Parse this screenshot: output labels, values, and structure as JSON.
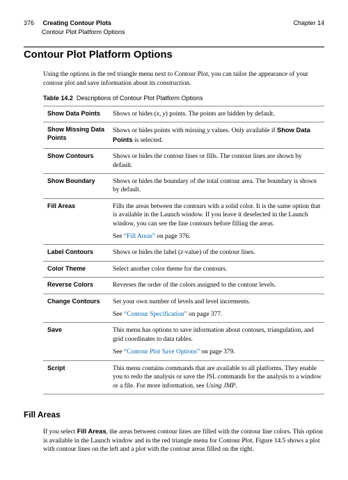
{
  "header": {
    "page": "376",
    "title": "Creating Contour Plots",
    "right": "Chapter 14",
    "sub": "Contour Plot Platform Options"
  },
  "section_title": "Contour Plot Platform Options",
  "intro": "Using the options in the red triangle menu next to Contour Plot, you can tailor the appearance of your contour plot and save information about its construction.",
  "table_caption_label": "Table 14.2",
  "table_caption_text": "Descriptions of Contour Plot Platform Options",
  "rows": [
    {
      "name": "Show Data Points",
      "html": "Shows or hides (<span class=\"italic\">x</span>, <span class=\"italic\">y</span>) points. The points are hidden by default."
    },
    {
      "name": "Show Missing Data Points",
      "html": "Shows or hides points with missing <span class=\"italic\">y</span> values. Only available if <span class=\"sans-bold\">Show Data Points</span> is selected."
    },
    {
      "name": "Show Contours",
      "html": "Shows or hides the contour lines or fills. The contour lines are shown by default."
    },
    {
      "name": "Show Boundary",
      "html": "Shows or hides the boundary of the total contour area. The boundary is shown by default."
    },
    {
      "name": "Fill Areas",
      "html": "Fills the areas between the contours with a solid color. It is the same option that is available in the Launch window. If you leave it deselected in the Launch window, you can see the line contours before filling the areas.<div class=\"subp\">See <span class=\"see-link\">&ldquo;Fill Areas&rdquo;</span> on page 376.</div>"
    },
    {
      "name": "Label Contours",
      "html": "Shows or hides the label (<span class=\"italic\">z</span>-value) of the contour lines."
    },
    {
      "name": "Color Theme",
      "html": "Select another color theme for the contours."
    },
    {
      "name": "Reverse Colors",
      "html": "Reverses the order of the colors assigned to the contour levels."
    },
    {
      "name": "Change Contours",
      "html": "Set your own number of levels and level increments.<div class=\"subp\">See <span class=\"see-link\">&ldquo;Contour Specification&rdquo;</span> on page 377.</div>"
    },
    {
      "name": "Save",
      "html": "This menu has options to save information about contours, triangulation, and grid coordinates to data tables.<div class=\"subp\">See <span class=\"see-link\">&ldquo;Contour Plot Save Options&rdquo;</span> on page 379.</div>"
    },
    {
      "name": "Script",
      "html": "This menu contains commands that are available to all platforms. They enable you to redo the analysis or save the JSL commands for the analysis to a window or a file. For more information, see <span class=\"italic\">Using JMP</span>."
    }
  ],
  "sub_heading": "Fill Areas",
  "sub_body_html": "If you select <span class=\"sans-bold\">Fill Areas</span>, the areas between contour lines are filled with the contour line colors. This option is available in the Launch window and in the red triangle menu for Contour Plot. Figure 14.5 shows a plot with contour lines on the left and a plot with the contour areas filled on the right."
}
